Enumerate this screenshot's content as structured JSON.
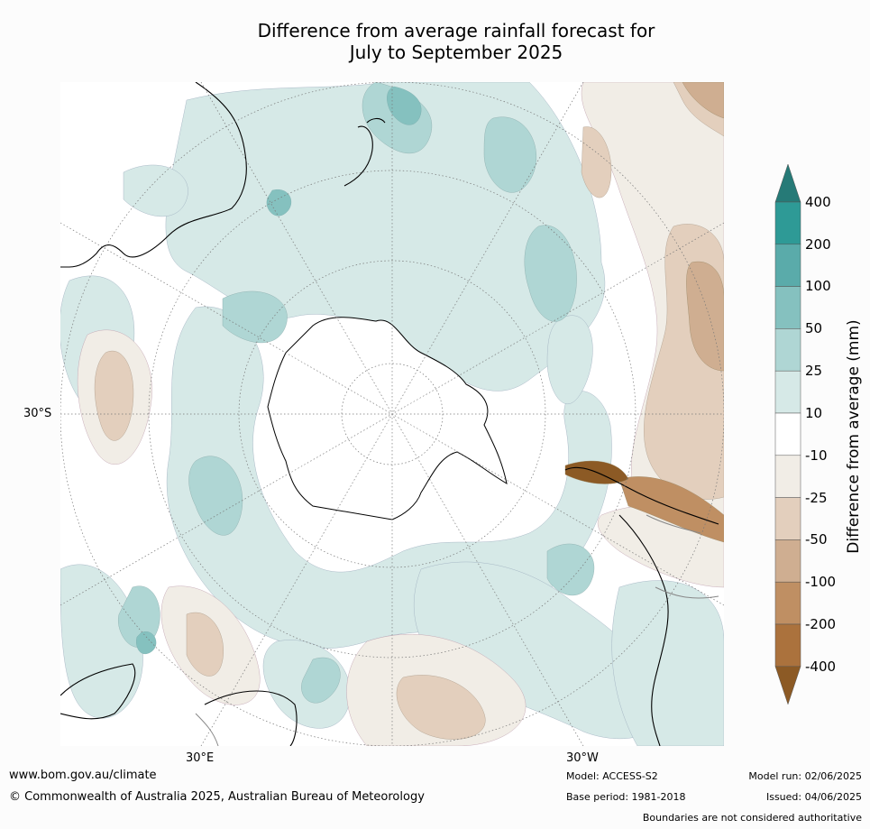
{
  "title": {
    "line1": "Difference from average rainfall forecast for",
    "line2": "July to September 2025"
  },
  "map": {
    "type": "south-polar-stereographic",
    "lat_label": "30°S",
    "lon_labels": [
      "30°E",
      "30°W"
    ],
    "features": [
      "antarctica-outline",
      "australia-outline",
      "new-zealand-outline",
      "south-america-outline",
      "africa-outline"
    ]
  },
  "colorbar": {
    "label": "Difference from average (mm)",
    "ticks": [
      "400",
      "200",
      "100",
      "50",
      "25",
      "10",
      "-10",
      "-25",
      "-50",
      "-100",
      "-200",
      "-400"
    ],
    "colors_top_to_bottom": [
      "#2e9a96",
      "#5aabaa",
      "#85c1bf",
      "#afd6d4",
      "#d6e9e7",
      "#ffffff",
      "#f1ede6",
      "#e3cfbd",
      "#cfae91",
      "#bf8f63",
      "#ab723d"
    ],
    "extend_max_color": "#267a77",
    "extend_min_color": "#8c5a25"
  },
  "footer": {
    "website": "www.bom.gov.au/climate",
    "copyright": "© Commonwealth of Australia 2025, Australian Bureau of Meteorology",
    "model": "Model: ACCESS-S2",
    "base_period": "Base period: 1981-2018",
    "model_run": "Model run: 02/06/2025",
    "issued": "Issued: 04/06/2025",
    "disclaimer": "Boundaries are not considered authoritative"
  }
}
